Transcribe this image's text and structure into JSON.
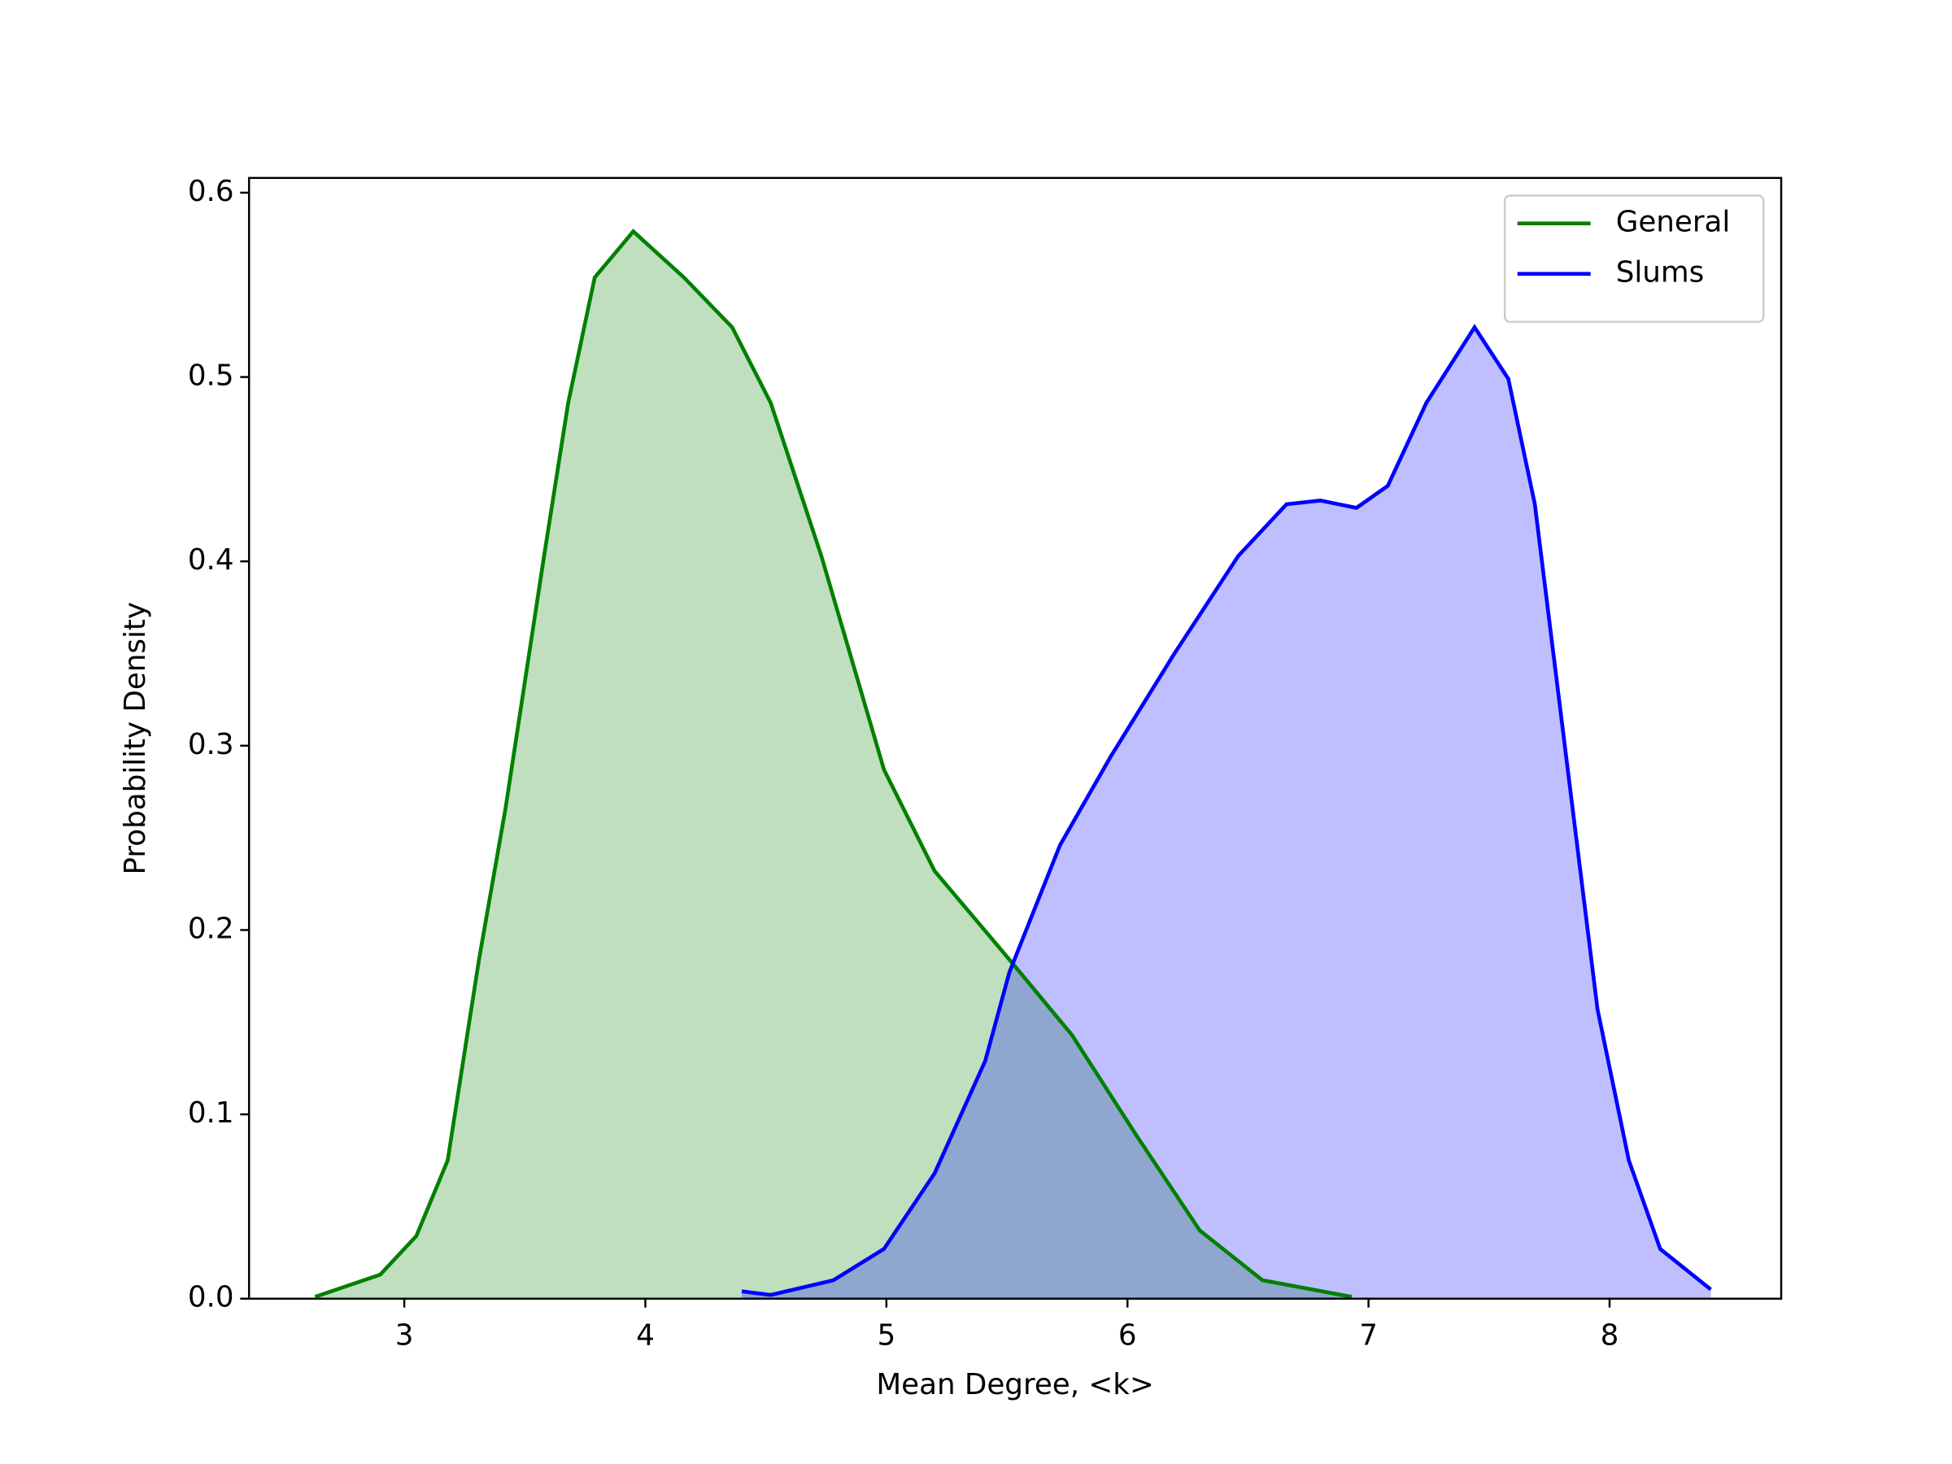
{
  "chart_data": {
    "type": "line",
    "x_label": "Mean Degree, <k>",
    "y_label": "Probability Density",
    "xlim": [
      2.356,
      8.712
    ],
    "ylim": [
      0,
      0.608
    ],
    "xticks": [
      3,
      4,
      5,
      6,
      7,
      8
    ],
    "yticks": [
      {
        "value": 0,
        "label": "0.0"
      },
      0.1,
      0.2,
      0.3,
      0.4,
      0.5,
      0.6
    ],
    "shade": true,
    "legend": "upper right",
    "series": [
      {
        "name": "General",
        "color": "#008000",
        "x": [
          2.63,
          2.9,
          3.05,
          3.18,
          3.31,
          3.42,
          3.58,
          3.68,
          3.79,
          3.95,
          4.16,
          4.36,
          4.52,
          4.73,
          4.99,
          5.2,
          5.51,
          5.77,
          6.04,
          6.3,
          6.56,
          6.93
        ],
        "values": [
          0.001,
          0.013,
          0.034,
          0.075,
          0.184,
          0.266,
          0.403,
          0.486,
          0.554,
          0.579,
          0.554,
          0.527,
          0.486,
          0.403,
          0.287,
          0.232,
          0.184,
          0.143,
          0.088,
          0.037,
          0.01,
          0.001
        ]
      },
      {
        "name": "Slums",
        "color": "#0000ff",
        "x": [
          4.4,
          4.52,
          4.78,
          4.99,
          5.2,
          5.41,
          5.51,
          5.72,
          5.93,
          6.19,
          6.46,
          6.66,
          6.8,
          6.95,
          7.08,
          7.24,
          7.44,
          7.58,
          7.69,
          7.82,
          7.95,
          8.08,
          8.21,
          8.42
        ],
        "values": [
          0.004,
          0.002,
          0.01,
          0.027,
          0.068,
          0.129,
          0.177,
          0.246,
          0.294,
          0.349,
          0.403,
          0.431,
          0.433,
          0.429,
          0.441,
          0.486,
          0.527,
          0.499,
          0.431,
          0.294,
          0.157,
          0.075,
          0.027,
          0.005
        ]
      }
    ]
  }
}
